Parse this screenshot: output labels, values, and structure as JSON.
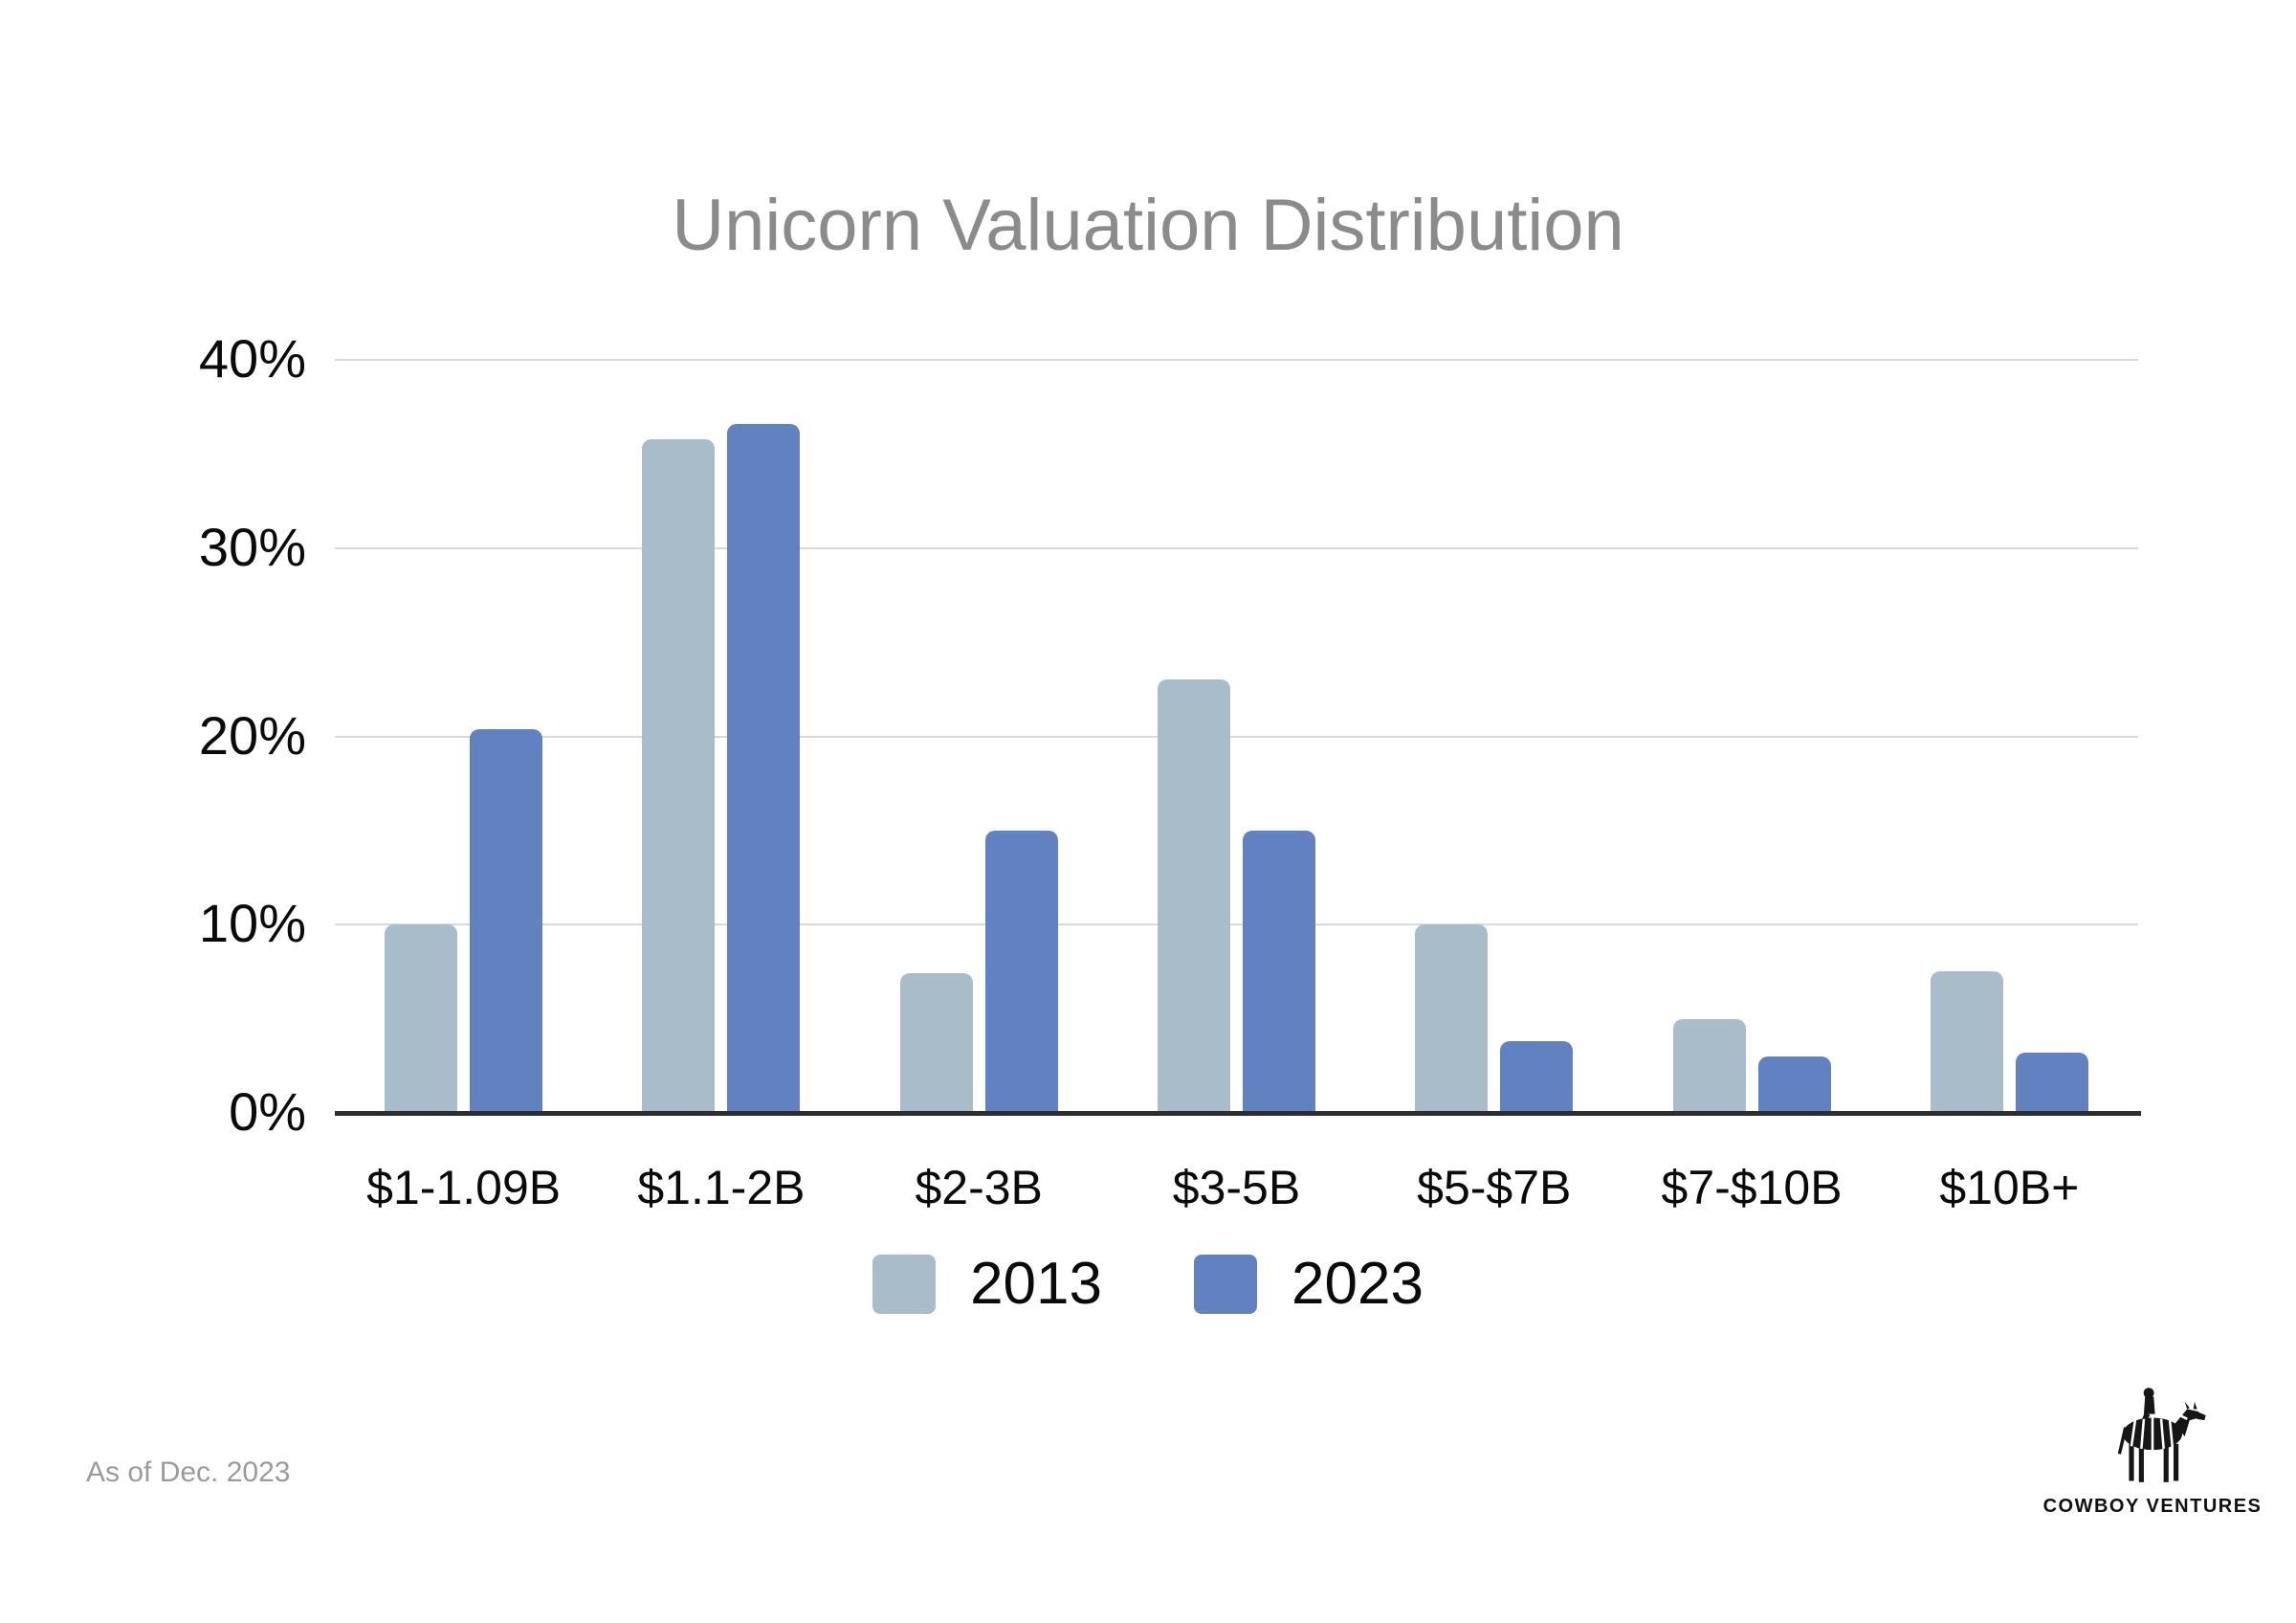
{
  "title": "Unicorn Valuation Distribution",
  "footnote": "As of Dec. 2023",
  "logo": {
    "icon": "zebra-with-rider",
    "text": "COWBOY VENTURES"
  },
  "colors": {
    "series_2013": "#a8bcc9",
    "series_2023": "#6181c1",
    "gridline": "#d9d9d9",
    "axis": "#2d2d2d",
    "title_text": "#8b8b8b",
    "tick_text": "#0a0a0a",
    "footnote_text": "#9b9b9b"
  },
  "chart_data": {
    "type": "bar",
    "title": "Unicorn Valuation Distribution",
    "categories": [
      "$1-1.09B",
      "$1.1-2B",
      "$2-3B",
      "$3-5B",
      "$5-$7B",
      "$7-$10B",
      "$10B+"
    ],
    "series": [
      {
        "name": "2013",
        "color": "#a8bcc9",
        "values": [
          10,
          35.8,
          7.4,
          23,
          10,
          5,
          7.5
        ]
      },
      {
        "name": "2023",
        "color": "#6181c1",
        "values": [
          20.4,
          36.6,
          15,
          15,
          3.8,
          3,
          3.2
        ]
      }
    ],
    "xlabel": "",
    "ylabel": "",
    "ylim": [
      0,
      40
    ],
    "yticks": [
      {
        "value": 0,
        "label": "0%"
      },
      {
        "value": 10,
        "label": "10%"
      },
      {
        "value": 20,
        "label": "20%"
      },
      {
        "value": 30,
        "label": "30%"
      },
      {
        "value": 40,
        "label": "40%"
      }
    ],
    "grid": true,
    "legend_position": "bottom"
  }
}
